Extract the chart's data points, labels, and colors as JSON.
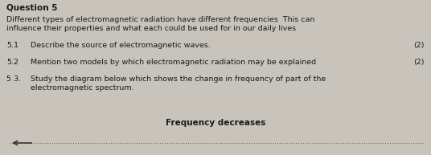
{
  "title": "Question 5",
  "background_color": "#c8c3bb",
  "intro_text_line1": "Different types of electromagnetic radiation have different frequencies  This can",
  "intro_text_line2": "influence their properties and what each could be used for in our daily lives",
  "q51_num": "5.1",
  "q51_text": "Describe the source of electromagnetic waves.",
  "q51_marks": "(2)",
  "q52_num": "5.2",
  "q52_text": "Mention two models by which electromagnetic radiation may be explained",
  "q52_marks": "(2)",
  "q53_num": "5 3.",
  "q53_text_line1": "Study the diagram below which shows the change in frequency of part of the",
  "q53_text_line2": "electromagnetic spectrum.",
  "freq_label": "Frequency decreases",
  "text_color": "#1c1c1c",
  "title_fontsize": 7.5,
  "body_fontsize": 6.8,
  "freq_fontsize": 7.5,
  "arrow_color": "#3a3530",
  "line_color": "#3a3530"
}
